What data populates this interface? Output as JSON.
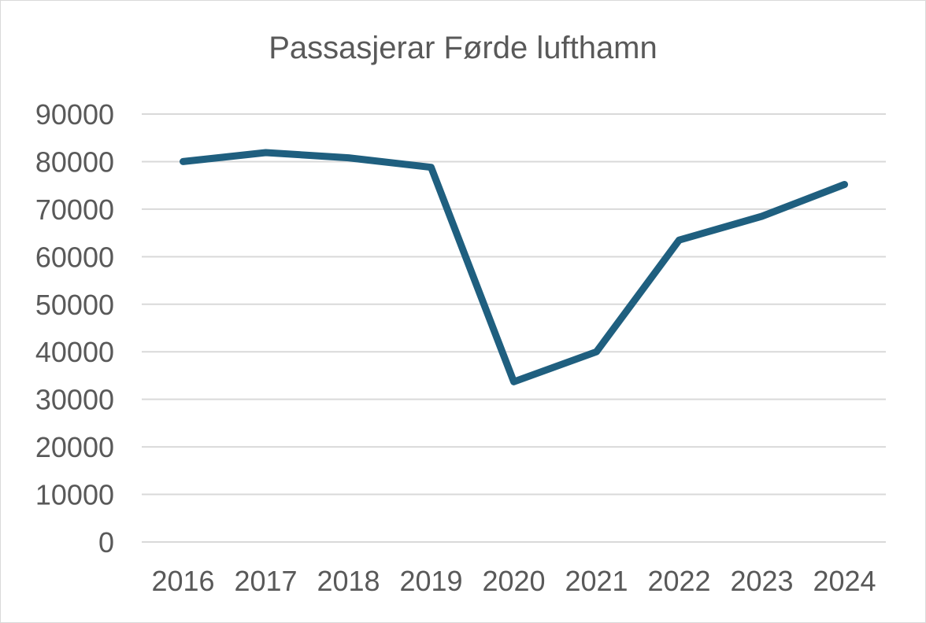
{
  "chart_data": {
    "type": "line",
    "title": "Passasjerar Førde lufthamn",
    "xlabel": "",
    "ylabel": "",
    "categories": [
      "2016",
      "2017",
      "2018",
      "2019",
      "2020",
      "2021",
      "2022",
      "2023",
      "2024"
    ],
    "series": [
      {
        "values": [
          80000,
          81900,
          80800,
          78800,
          33700,
          40000,
          63500,
          68500,
          75200
        ],
        "color": "#1f5f7f"
      }
    ],
    "ylim": [
      0,
      90000
    ],
    "yticks": [
      "0",
      "10000",
      "20000",
      "30000",
      "40000",
      "50000",
      "60000",
      "70000",
      "80000",
      "90000"
    ],
    "grid": true,
    "legend": "none"
  }
}
